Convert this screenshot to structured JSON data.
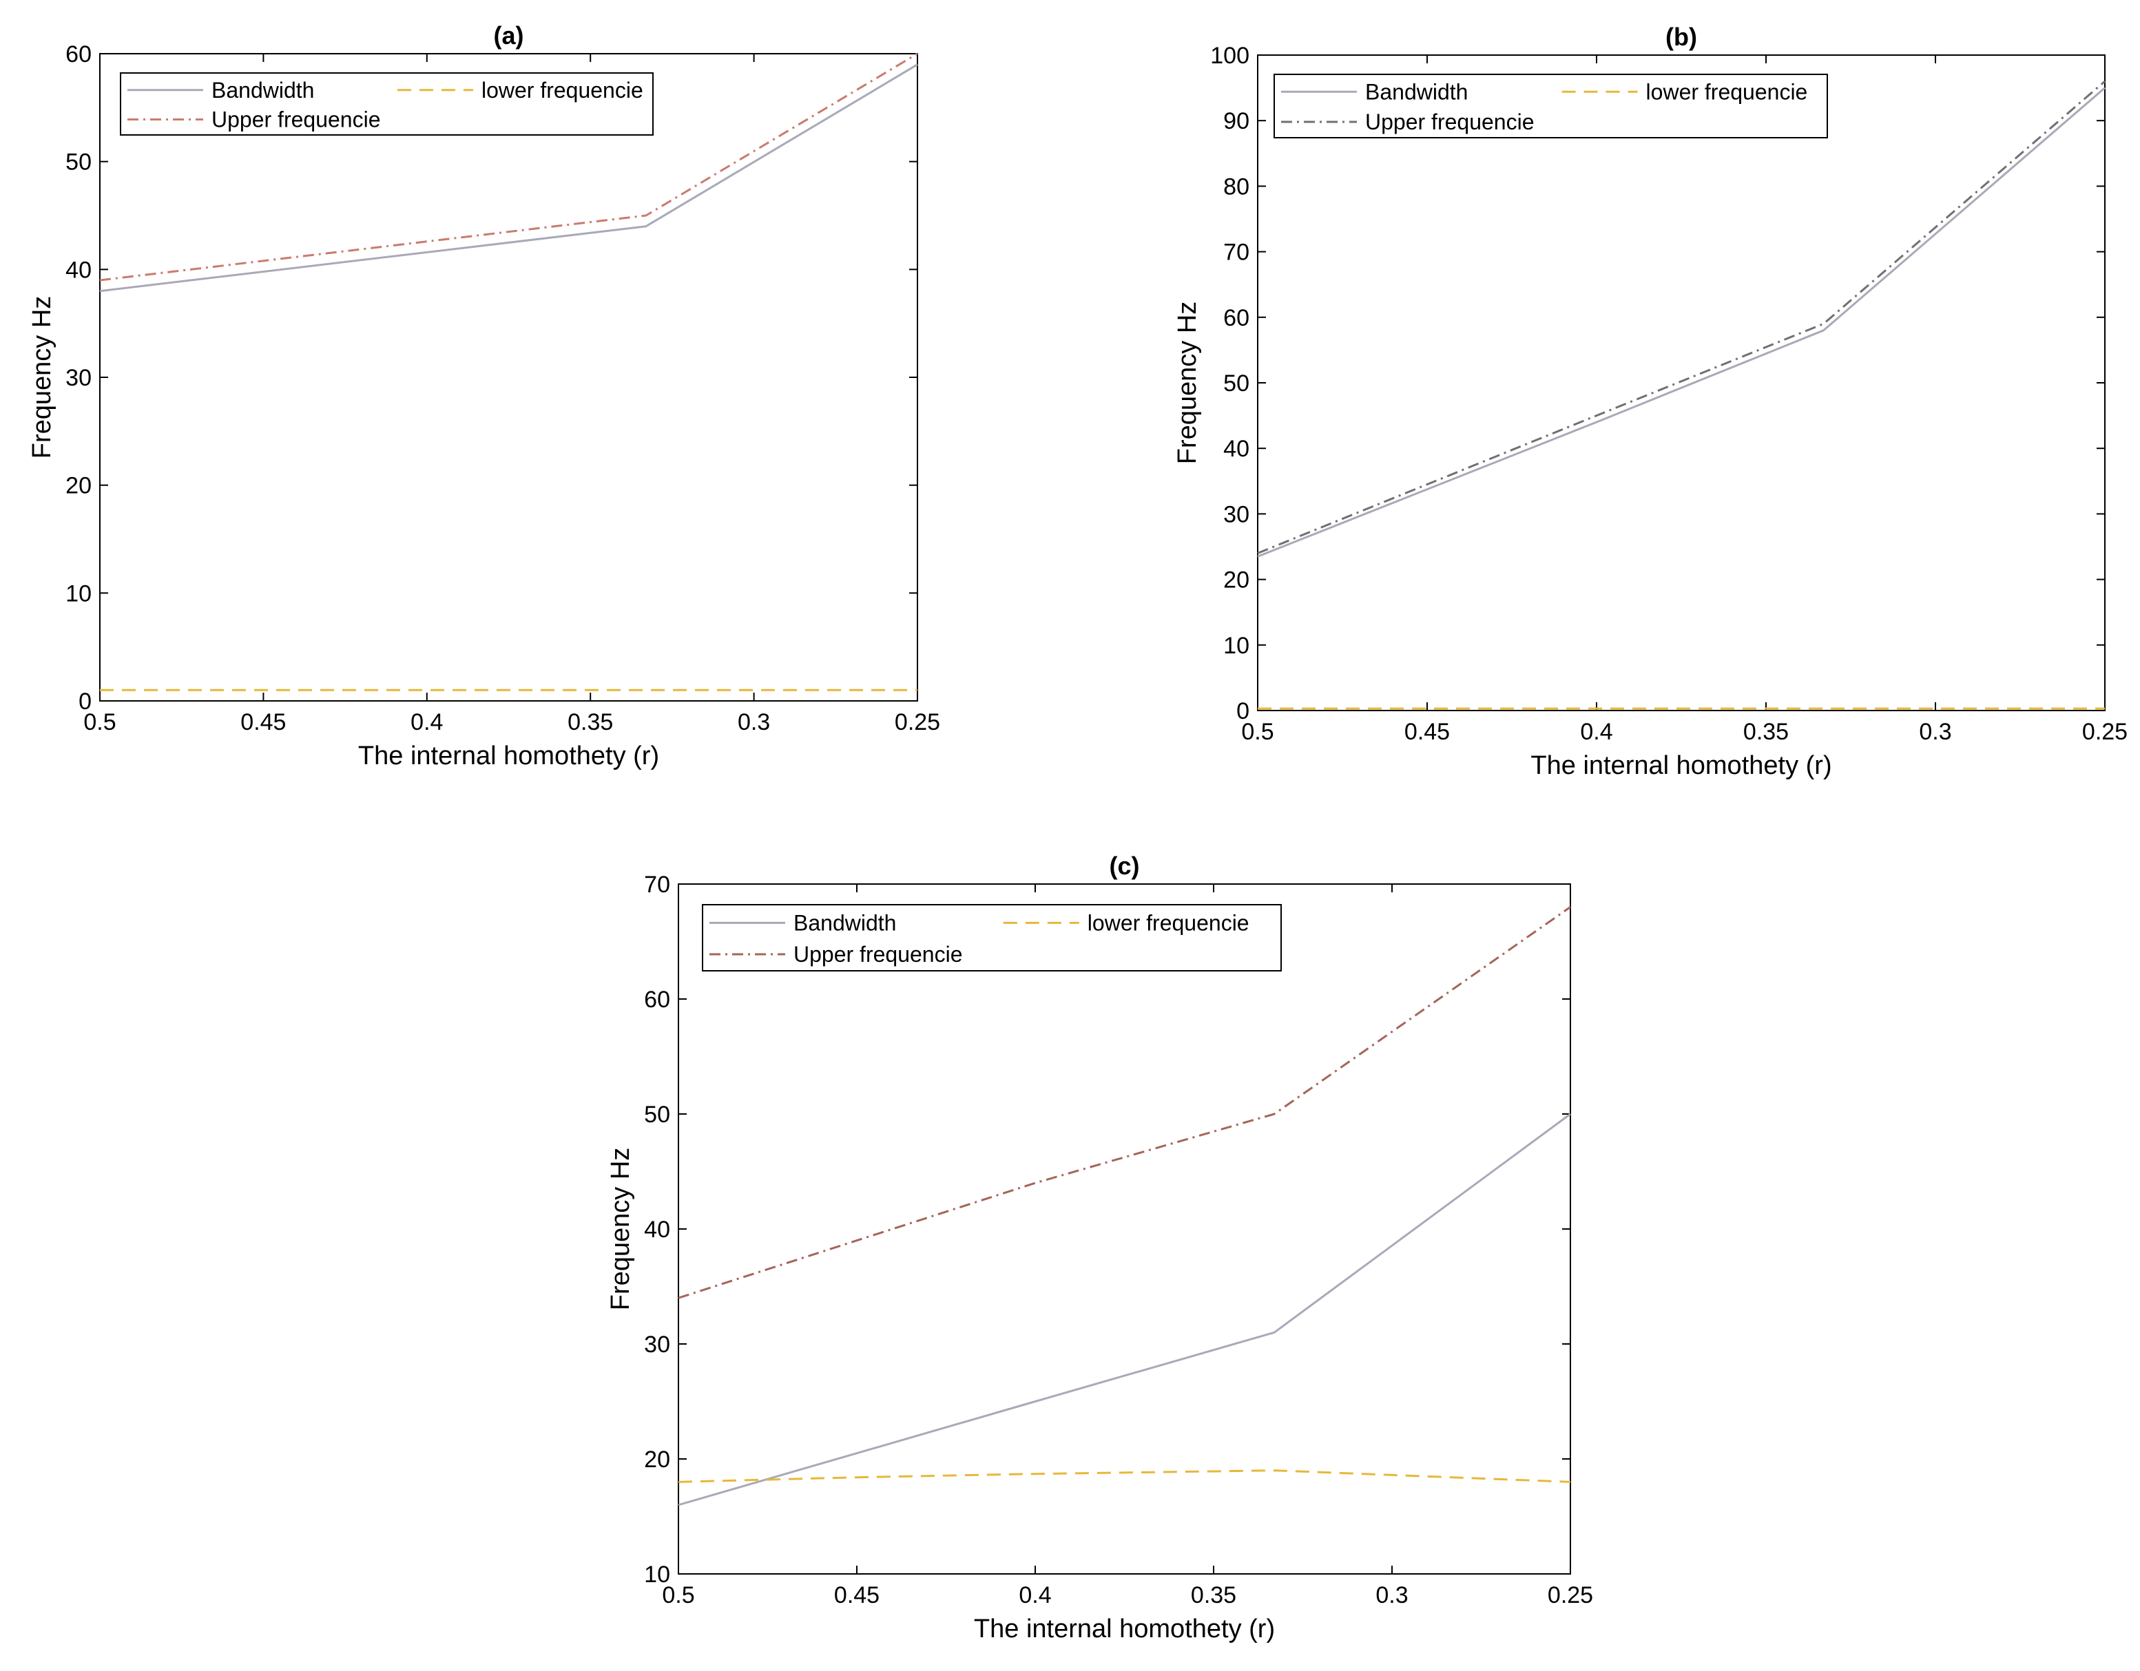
{
  "colors": {
    "bandwidth": "#a9a9b8",
    "lower": "#e6b83a",
    "upper_a": "#c97b6e",
    "upper_b": "#707070",
    "upper_c": "#a5655a",
    "axis": "#000000"
  },
  "chart_data": [
    {
      "type": "line",
      "panel": "a",
      "title": "(a)",
      "xlabel": "The internal homothety (r)",
      "ylabel": "Frequency Hz",
      "xlim": [
        0.5,
        0.25
      ],
      "ylim": [
        0,
        60
      ],
      "xticks": [
        0.5,
        0.45,
        0.4,
        0.35,
        0.3,
        0.25
      ],
      "xtick_labels": [
        "0.5",
        "0.45",
        "0.4",
        "0.35",
        "0.3",
        "0.25"
      ],
      "yticks": [
        0,
        10,
        20,
        30,
        40,
        50,
        60
      ],
      "ytick_labels": [
        "0",
        "10",
        "20",
        "30",
        "40",
        "50",
        "60"
      ],
      "legend": "top-left, two columns",
      "legend_order": [
        "Bandwidth",
        "lower frequencie",
        "Upper frequencie"
      ],
      "x": [
        0.5,
        0.333,
        0.25
      ],
      "series": [
        {
          "name": "Bandwidth",
          "style": "solid",
          "color_key": "bandwidth",
          "values": [
            38,
            44,
            59
          ]
        },
        {
          "name": "lower frequencie",
          "style": "dashed",
          "color_key": "lower",
          "values": [
            1,
            1,
            1
          ]
        },
        {
          "name": "Upper frequencie",
          "style": "dashdot",
          "color_key": "upper_a",
          "values": [
            39,
            45,
            60
          ]
        }
      ]
    },
    {
      "type": "line",
      "panel": "b",
      "title": "(b)",
      "xlabel": "The internal homothety (r)",
      "ylabel": "Frequency Hz",
      "xlim": [
        0.5,
        0.25
      ],
      "ylim": [
        0,
        100
      ],
      "xticks": [
        0.5,
        0.45,
        0.4,
        0.35,
        0.3,
        0.25
      ],
      "xtick_labels": [
        "0.5",
        "0.45",
        "0.4",
        "0.35",
        "0.3",
        "0.25"
      ],
      "yticks": [
        0,
        10,
        20,
        30,
        40,
        50,
        60,
        70,
        80,
        90,
        100
      ],
      "ytick_labels": [
        "0",
        "10",
        "20",
        "30",
        "40",
        "50",
        "60",
        "70",
        "80",
        "90",
        "100"
      ],
      "legend": "top-left, two columns",
      "legend_order": [
        "Bandwidth",
        "lower frequencie",
        "Upper frequencie"
      ],
      "x": [
        0.5,
        0.4,
        0.333,
        0.25
      ],
      "series": [
        {
          "name": "Bandwidth",
          "style": "solid",
          "color_key": "bandwidth",
          "values": [
            23.5,
            44,
            58,
            95
          ]
        },
        {
          "name": "lower frequencie",
          "style": "dashed",
          "color_key": "lower",
          "values": [
            0.3,
            0.3,
            0.3,
            0.3
          ]
        },
        {
          "name": "Upper frequencie",
          "style": "dashdot",
          "color_key": "upper_b",
          "values": [
            24,
            45,
            59,
            96
          ]
        }
      ]
    },
    {
      "type": "line",
      "panel": "c",
      "title": "(c)",
      "xlabel": "The internal homothety (r)",
      "ylabel": "Frequency Hz",
      "xlim": [
        0.5,
        0.25
      ],
      "ylim": [
        10,
        70
      ],
      "xticks": [
        0.5,
        0.45,
        0.4,
        0.35,
        0.3,
        0.25
      ],
      "xtick_labels": [
        "0.5",
        "0.45",
        "0.4",
        "0.35",
        "0.3",
        "0.25"
      ],
      "yticks": [
        10,
        20,
        30,
        40,
        50,
        60,
        70
      ],
      "ytick_labels": [
        "10",
        "20",
        "30",
        "40",
        "50",
        "60",
        "70"
      ],
      "legend": "top-left, two columns",
      "legend_order": [
        "Bandwidth",
        "lower frequencie",
        "Upper frequencie"
      ],
      "x": [
        0.5,
        0.45,
        0.4,
        0.333,
        0.25
      ],
      "series": [
        {
          "name": "Bandwidth",
          "style": "solid",
          "color_key": "bandwidth",
          "values": [
            16,
            20.5,
            25,
            31,
            50
          ]
        },
        {
          "name": "lower frequencie",
          "style": "dashed",
          "color_key": "lower",
          "values": [
            18,
            18.4,
            18.7,
            19,
            18
          ]
        },
        {
          "name": "Upper frequencie",
          "style": "dashdot",
          "color_key": "upper_c",
          "values": [
            34,
            39,
            44,
            50,
            68
          ]
        }
      ]
    }
  ]
}
